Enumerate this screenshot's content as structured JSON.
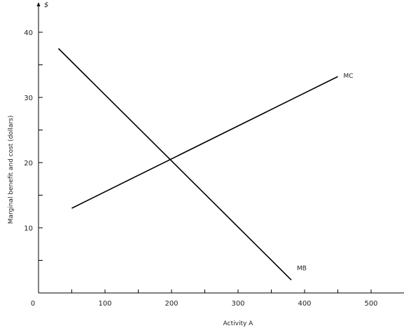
{
  "chart_data": {
    "type": "line",
    "title": "",
    "xlabel": "Activity A",
    "ylabel": "Marginal benefit and cost (dollars)",
    "x_axis_end_label": "A",
    "y_axis_end_label": "$",
    "xlim": [
      0,
      560
    ],
    "ylim": [
      0,
      44
    ],
    "x_ticks": [
      0,
      100,
      200,
      300,
      400,
      500
    ],
    "y_ticks": [
      10,
      20,
      30,
      40
    ],
    "x_minor_ticks": [
      50,
      150,
      250,
      350,
      450,
      550
    ],
    "y_minor_ticks": [
      5,
      15,
      25,
      35
    ],
    "grid": false,
    "legend": "none",
    "series": [
      {
        "name": "MC",
        "x": [
          50,
          450
        ],
        "y": [
          13,
          33.2
        ],
        "color": "#000000"
      },
      {
        "name": "MB",
        "x": [
          30,
          380
        ],
        "y": [
          37.5,
          2
        ],
        "color": "#000000"
      }
    ]
  }
}
